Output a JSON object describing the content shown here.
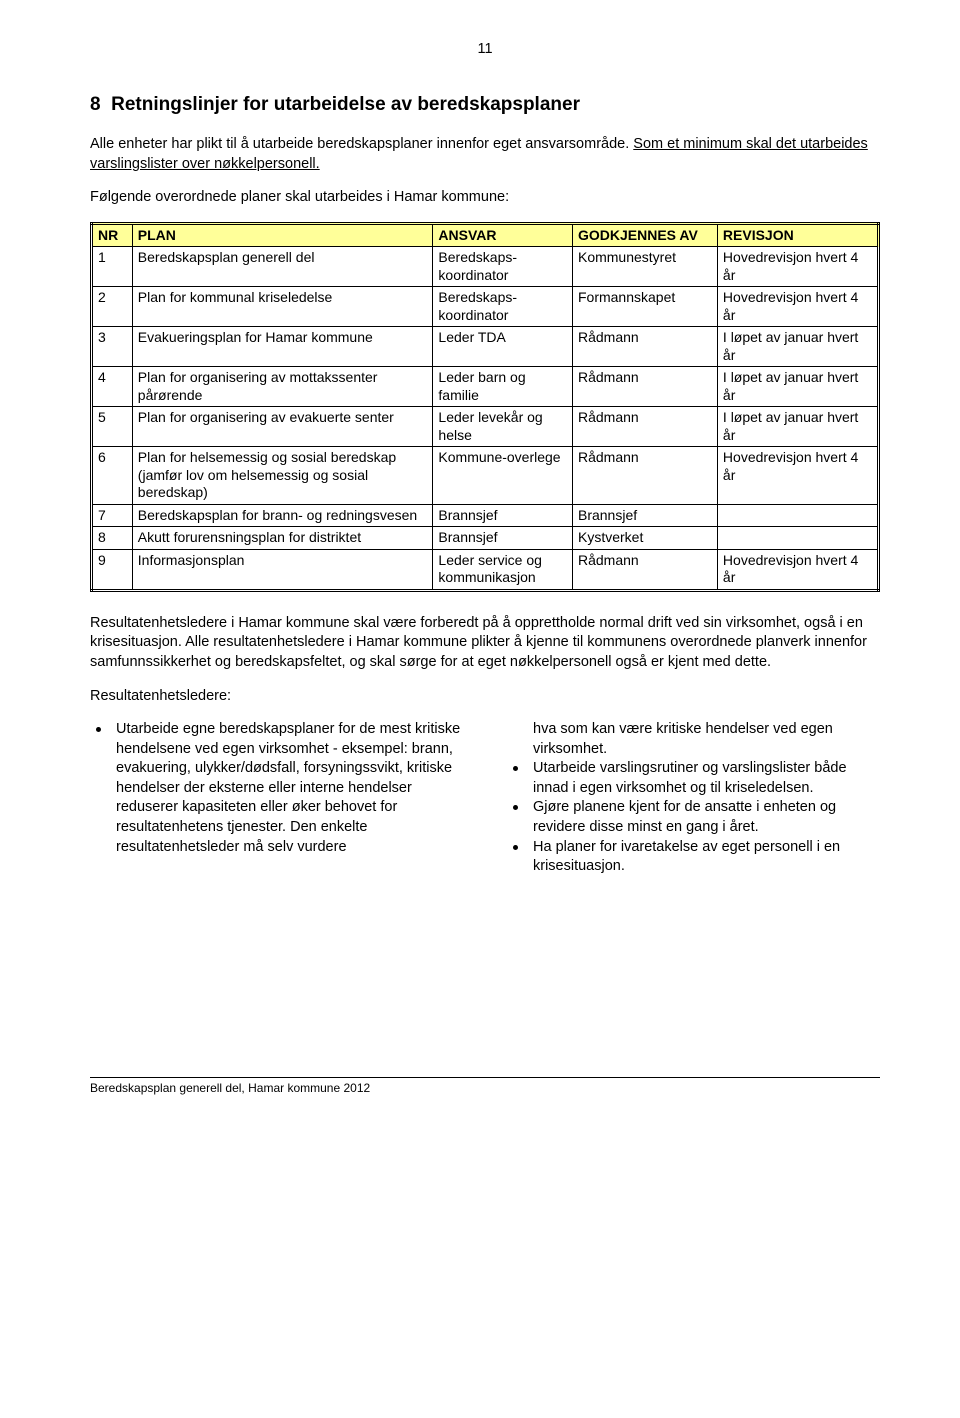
{
  "page_number": "11",
  "section": {
    "number": "8",
    "title": "Retningslinjer for utarbeidelse av beredskapsplaner"
  },
  "intro": {
    "p1a": "Alle enheter har plikt til å utarbeide beredskapsplaner innenfor eget ansvarsområde. ",
    "p1b_underlined": "Som et minimum skal det utarbeides varslingslister over nøkkelpersonell.",
    "p2": "Følgende overordnede planer skal utarbeides i Hamar kommune:"
  },
  "table": {
    "headers": {
      "nr": "NR",
      "plan": "PLAN",
      "ansvar": "ANSVAR",
      "godkjennes": "GODKJENNES AV",
      "revisjon": "REVISJON"
    },
    "rows": [
      {
        "nr": "1",
        "plan": "Beredskapsplan generell del",
        "ansvar": "Beredskaps-koordinator",
        "godkjennes": "Kommunestyret",
        "revisjon": "Hovedrevisjon hvert 4 år"
      },
      {
        "nr": "2",
        "plan": "Plan for kommunal kriseledelse",
        "ansvar": "Beredskaps-koordinator",
        "godkjennes": "Formannskapet",
        "revisjon": "Hovedrevisjon hvert 4 år"
      },
      {
        "nr": "3",
        "plan": "Evakueringsplan for Hamar kommune",
        "ansvar": "Leder TDA",
        "godkjennes": "Rådmann",
        "revisjon": "I løpet av januar hvert år"
      },
      {
        "nr": "4",
        "plan": "Plan for organisering av mottakssenter pårørende",
        "ansvar": "Leder barn og familie",
        "godkjennes": "Rådmann",
        "revisjon": "I løpet av januar hvert år"
      },
      {
        "nr": "5",
        "plan": "Plan for organisering av evakuerte senter",
        "ansvar": "Leder levekår og helse",
        "godkjennes": "Rådmann",
        "revisjon": "I løpet av januar hvert år"
      },
      {
        "nr": "6",
        "plan": "Plan for helsemessig og sosial beredskap (jamfør lov om helsemessig og sosial beredskap)",
        "ansvar": "Kommune-overlege",
        "godkjennes": "Rådmann",
        "revisjon": "Hovedrevisjon hvert 4 år"
      },
      {
        "nr": "7",
        "plan": "Beredskapsplan for brann- og redningsvesen",
        "ansvar": "Brannsjef",
        "godkjennes": "Brannsjef",
        "revisjon": ""
      },
      {
        "nr": "8",
        "plan": "Akutt forurensningsplan for distriktet",
        "ansvar": "Brannsjef",
        "godkjennes": "Kystverket",
        "revisjon": ""
      },
      {
        "nr": "9",
        "plan": "Informasjonsplan",
        "ansvar": "Leder service og kommunikasjon",
        "godkjennes": "Rådmann",
        "revisjon": "Hovedrevisjon hvert 4 år"
      }
    ]
  },
  "post_table": {
    "p1": "Resultatenhetsledere i Hamar kommune skal være forberedt på å opprettholde normal drift ved sin virksomhet, også i en krisesituasjon. Alle resultatenhetsledere i Hamar kommune plikter å kjenne til kommunens overordnede planverk innenfor samfunnssikkerhet og beredskapsfeltet, og skal sørge for at eget nøkkelpersonell også er kjent med dette.",
    "p2": "Resultatenhetsledere:"
  },
  "bullets_left": [
    "Utarbeide egne beredskapsplaner for de mest kritiske hendelsene ved egen virksomhet - eksempel: brann, evakuering, ulykker/dødsfall, forsyningssvikt, kritiske hendelser der eksterne eller interne hendelser reduserer kapasiteten eller øker behovet for resultatenhetens tjenester. Den enkelte resultatenhetsleder må selv vurdere"
  ],
  "right_intro": "hva som kan være kritiske hendelser ved egen virksomhet.",
  "bullets_right": [
    "Utarbeide varslingsrutiner og varslingslister både innad i egen virksomhet og til kriseledelsen.",
    "Gjøre planene kjent for de ansatte i enheten og revidere disse minst en gang i året.",
    "Ha planer for ivaretakelse av eget personell i en krisesituasjon."
  ],
  "footer_text": "Beredskapsplan generell del, Hamar kommune 2012",
  "colors": {
    "header_bg": "#ffff99",
    "border": "#000000",
    "text": "#000000",
    "background": "#ffffff"
  }
}
